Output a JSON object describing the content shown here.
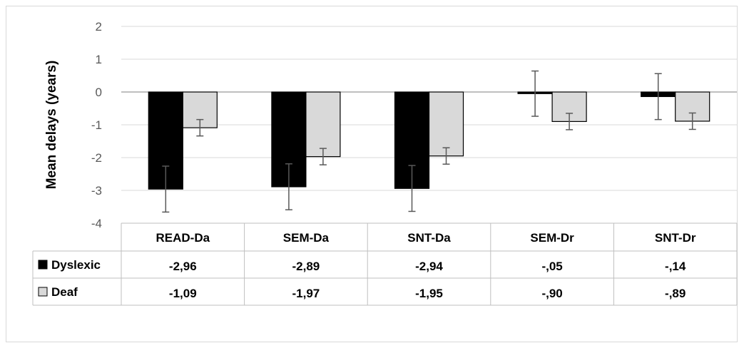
{
  "chart_data": {
    "type": "bar",
    "ylabel": "Mean delays (years)",
    "ylim": [
      -4,
      2
    ],
    "yticks": [
      "2",
      "1",
      "0",
      "-1",
      "-2",
      "-3",
      "-4"
    ],
    "categories": [
      "READ-Da",
      "SEM-Da",
      "SNT-Da",
      "SEM-Dr",
      "SNT-Dr"
    ],
    "grid": true,
    "legend": "data-table-left",
    "series": [
      {
        "name": "Dyslexic",
        "color": "#000000",
        "values": [
          -2.96,
          -2.89,
          -2.94,
          -0.05,
          -0.14
        ],
        "labels": [
          "-2,96",
          "-2,89",
          "-2,94",
          "-,05",
          "-,14"
        ],
        "error": [
          0.7,
          0.7,
          0.7,
          0.69,
          0.7
        ]
      },
      {
        "name": "Deaf",
        "color": "#d9d9d9",
        "values": [
          -1.09,
          -1.97,
          -1.95,
          -0.9,
          -0.89
        ],
        "labels": [
          "-1,09",
          "-1,97",
          "-1,95",
          "-,90",
          "-,89"
        ],
        "error": [
          0.25,
          0.25,
          0.25,
          0.25,
          0.25
        ]
      }
    ]
  }
}
